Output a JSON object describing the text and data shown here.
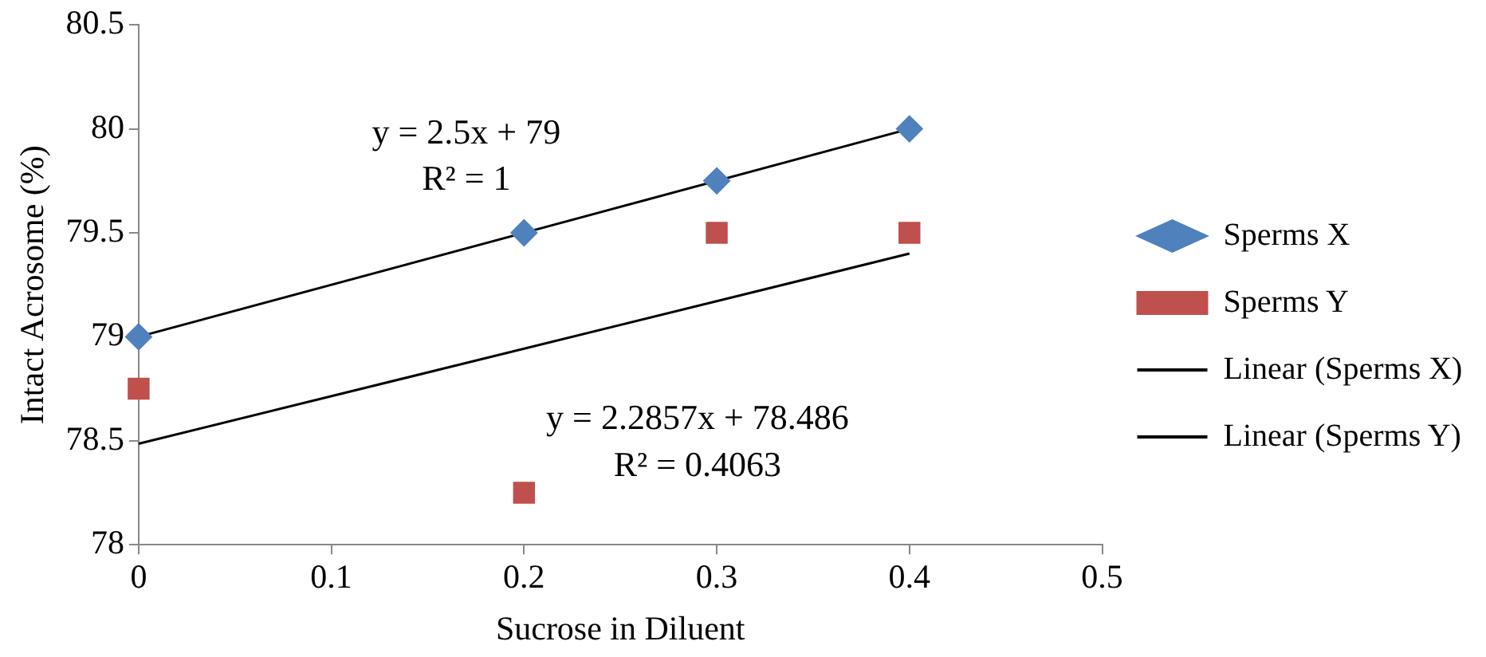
{
  "chart_data": {
    "type": "scatter",
    "xlabel": "Sucrose in Diluent",
    "ylabel": "Intact Acrosome (%)",
    "xlim": [
      0,
      0.5
    ],
    "xticks": [
      0,
      0.1,
      0.2,
      0.3,
      0.4,
      0.5
    ],
    "ylim": [
      78,
      80.5
    ],
    "yticks": [
      78,
      78.5,
      79,
      79.5,
      80,
      80.5
    ],
    "grid": false,
    "legend": "right",
    "series": [
      {
        "name": "Sperms X",
        "type": "scatter",
        "marker": "diamond",
        "color": "#4f81bd",
        "x": [
          0,
          0.2,
          0.3,
          0.4
        ],
        "values": [
          79,
          79.5,
          79.75,
          80
        ]
      },
      {
        "name": "Sperms Y",
        "type": "scatter",
        "marker": "square",
        "color": "#c0504d",
        "x": [
          0,
          0.2,
          0.3,
          0.4
        ],
        "values": [
          78.75,
          78.25,
          79.5,
          79.5
        ]
      },
      {
        "name": "Linear (Sperms X)",
        "type": "line",
        "marker": "none",
        "color": "#000000",
        "x": [
          0,
          0.4
        ],
        "values": [
          79,
          80
        ]
      },
      {
        "name": "Linear (Sperms Y)",
        "type": "line",
        "marker": "none",
        "color": "#000000",
        "x": [
          0,
          0.4
        ],
        "values": [
          78.486,
          79.4
        ]
      }
    ],
    "annotations": [
      "y = 2.5x + 79",
      "R² = 1",
      "y = 2.2857x + 78.486",
      "R² = 0.4063"
    ]
  }
}
